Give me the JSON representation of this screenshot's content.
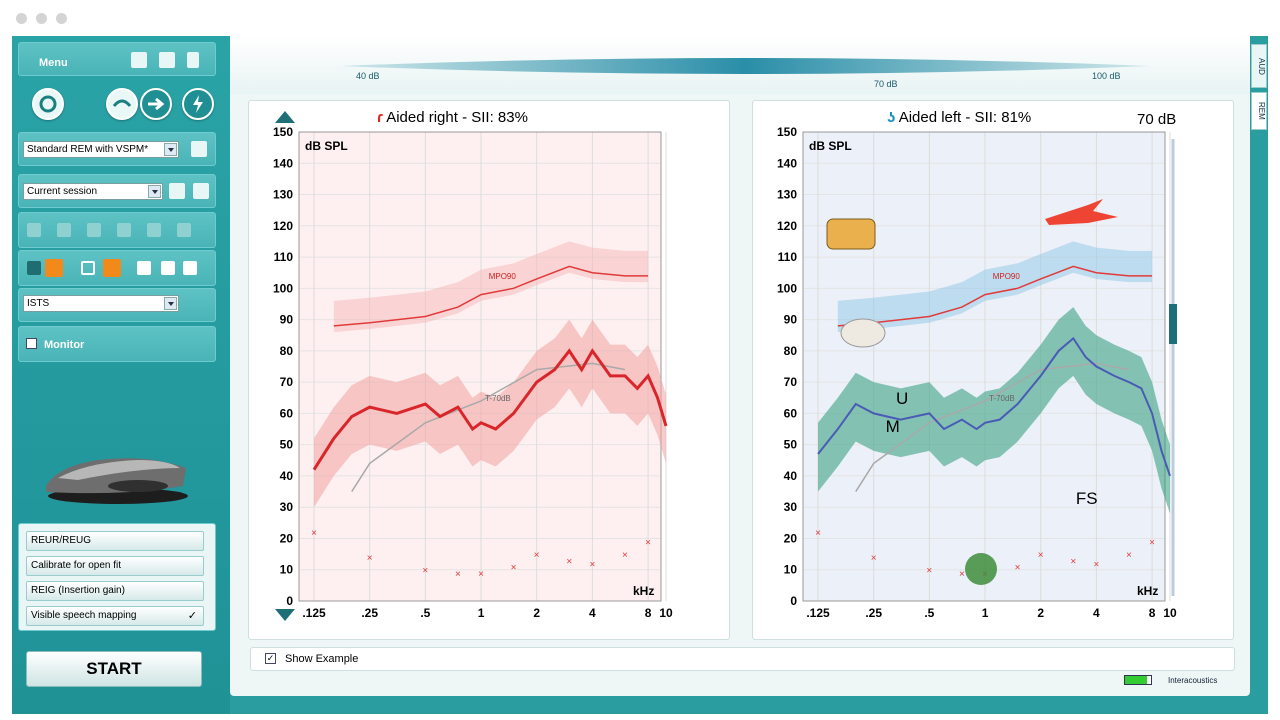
{
  "sidebar": {
    "menu_label": "Menu",
    "protocol_select": "Standard REM with VSPM*",
    "session_select": "Current session",
    "signal_select": "ISTS",
    "monitor_label": "Monitor",
    "mode_buttons": [
      {
        "label": "REUR/REUG",
        "checked": false
      },
      {
        "label": "Calibrate for open fit",
        "checked": false
      },
      {
        "label": "REIG (Insertion gain)",
        "checked": false
      },
      {
        "label": "Visible speech mapping",
        "checked": true,
        "tick": "✓"
      }
    ],
    "start_label": "START"
  },
  "level_slider": {
    "min_label": "40 dB",
    "current_label": "70 dB",
    "max_label": "100 dB"
  },
  "charts": {
    "right": {
      "title": "Aided right - SII: 83%",
      "ylabel": "dB SPL",
      "xlabel": "kHz",
      "mpo_label": "MPO90",
      "target_label": "T-70dB"
    },
    "left": {
      "title": "Aided left - SII: 81%",
      "ylabel": "dB SPL",
      "xlabel": "kHz",
      "mpo_label": "MPO90",
      "target_label": "T-70dB",
      "level_readout": "70 dB",
      "letter_u": "U",
      "letter_m": "M",
      "letter_fs": "FS"
    }
  },
  "chart_data": [
    {
      "type": "line",
      "title": "Aided right - SII: 83%",
      "ylabel": "dB SPL",
      "xlabel": "kHz",
      "x_ticks": [
        ".125",
        ".25",
        ".5",
        "1",
        "2",
        "4",
        "8",
        "10"
      ],
      "y_ticks": [
        0,
        10,
        20,
        30,
        40,
        50,
        60,
        70,
        80,
        90,
        100,
        110,
        120,
        130,
        140,
        150
      ],
      "ylim": [
        0,
        150
      ],
      "threshold_x": [
        0.125,
        0.25,
        0.5,
        0.75,
        1,
        1.5,
        2,
        3,
        4,
        6,
        8
      ],
      "threshold_y": [
        22,
        14,
        10,
        9,
        9,
        11,
        15,
        13,
        12,
        15,
        19
      ],
      "mpo_x": [
        0.16,
        0.25,
        0.5,
        0.75,
        1,
        1.5,
        2,
        3,
        4,
        6,
        8
      ],
      "mpo_y": [
        88,
        89,
        91,
        94,
        98,
        100,
        103,
        107,
        105,
        104,
        104
      ],
      "aided_x": [
        0.125,
        0.16,
        0.2,
        0.25,
        0.35,
        0.5,
        0.6,
        0.75,
        0.9,
        1,
        1.2,
        1.5,
        2,
        2.5,
        3,
        3.5,
        4,
        5,
        6,
        7,
        8,
        9,
        10
      ],
      "aided_y": [
        42,
        52,
        59,
        62,
        60,
        63,
        59,
        62,
        55,
        57,
        55,
        60,
        70,
        74,
        80,
        74,
        80,
        72,
        72,
        68,
        72,
        65,
        56
      ]
    },
    {
      "type": "line",
      "title": "Aided left - SII: 81%",
      "ylabel": "dB SPL",
      "xlabel": "kHz",
      "x_ticks": [
        ".125",
        ".25",
        ".5",
        "1",
        "2",
        "4",
        "8",
        "10"
      ],
      "y_ticks": [
        0,
        10,
        20,
        30,
        40,
        50,
        60,
        70,
        80,
        90,
        100,
        110,
        120,
        130,
        140,
        150
      ],
      "ylim": [
        0,
        150
      ],
      "threshold_x": [
        0.125,
        0.25,
        0.5,
        0.75,
        1,
        1.5,
        2,
        3,
        4,
        6,
        8
      ],
      "threshold_y": [
        22,
        14,
        10,
        9,
        9,
        11,
        15,
        13,
        12,
        15,
        19
      ],
      "mpo_x": [
        0.16,
        0.25,
        0.5,
        0.75,
        1,
        1.5,
        2,
        3,
        4,
        6,
        8
      ],
      "mpo_y": [
        88,
        89,
        91,
        94,
        98,
        100,
        103,
        107,
        105,
        104,
        104
      ],
      "aided_x": [
        0.125,
        0.16,
        0.2,
        0.25,
        0.35,
        0.5,
        0.6,
        0.75,
        0.9,
        1,
        1.2,
        1.5,
        2,
        2.5,
        3,
        3.5,
        4,
        5,
        6,
        7,
        8,
        9,
        10
      ],
      "aided_y": [
        47,
        55,
        63,
        60,
        58,
        60,
        55,
        58,
        55,
        57,
        58,
        63,
        72,
        80,
        84,
        78,
        75,
        72,
        70,
        68,
        60,
        48,
        40
      ]
    }
  ],
  "example": {
    "label": "Show Example",
    "checked": true
  },
  "brand": "Interacoustics",
  "tabs": [
    "AUD",
    "REM"
  ]
}
